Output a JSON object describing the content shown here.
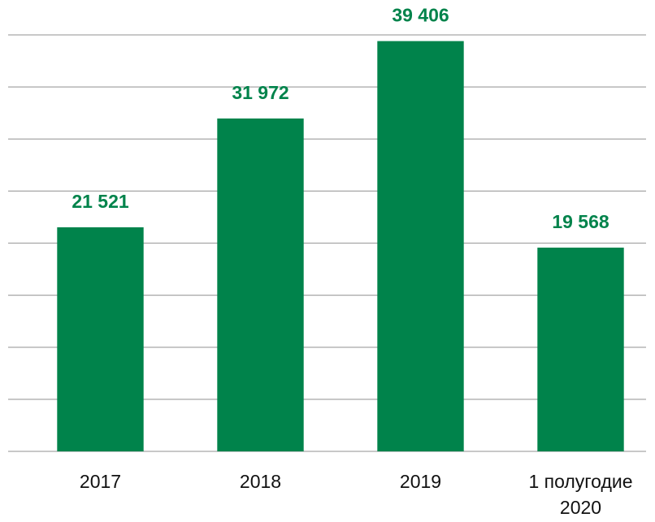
{
  "chart_data": {
    "type": "bar",
    "categories": [
      "2017",
      "2018",
      "2019",
      "1 полугодие 2020"
    ],
    "values": [
      21521,
      31972,
      39406,
      19568
    ],
    "value_labels": [
      "21 521",
      "31 972",
      "39 406",
      "19 568"
    ],
    "color": "#00834b",
    "ylim": [
      0,
      40000
    ],
    "yticks": [
      0,
      5000,
      10000,
      15000,
      20000,
      25000,
      30000,
      35000,
      40000
    ],
    "grid": true
  }
}
